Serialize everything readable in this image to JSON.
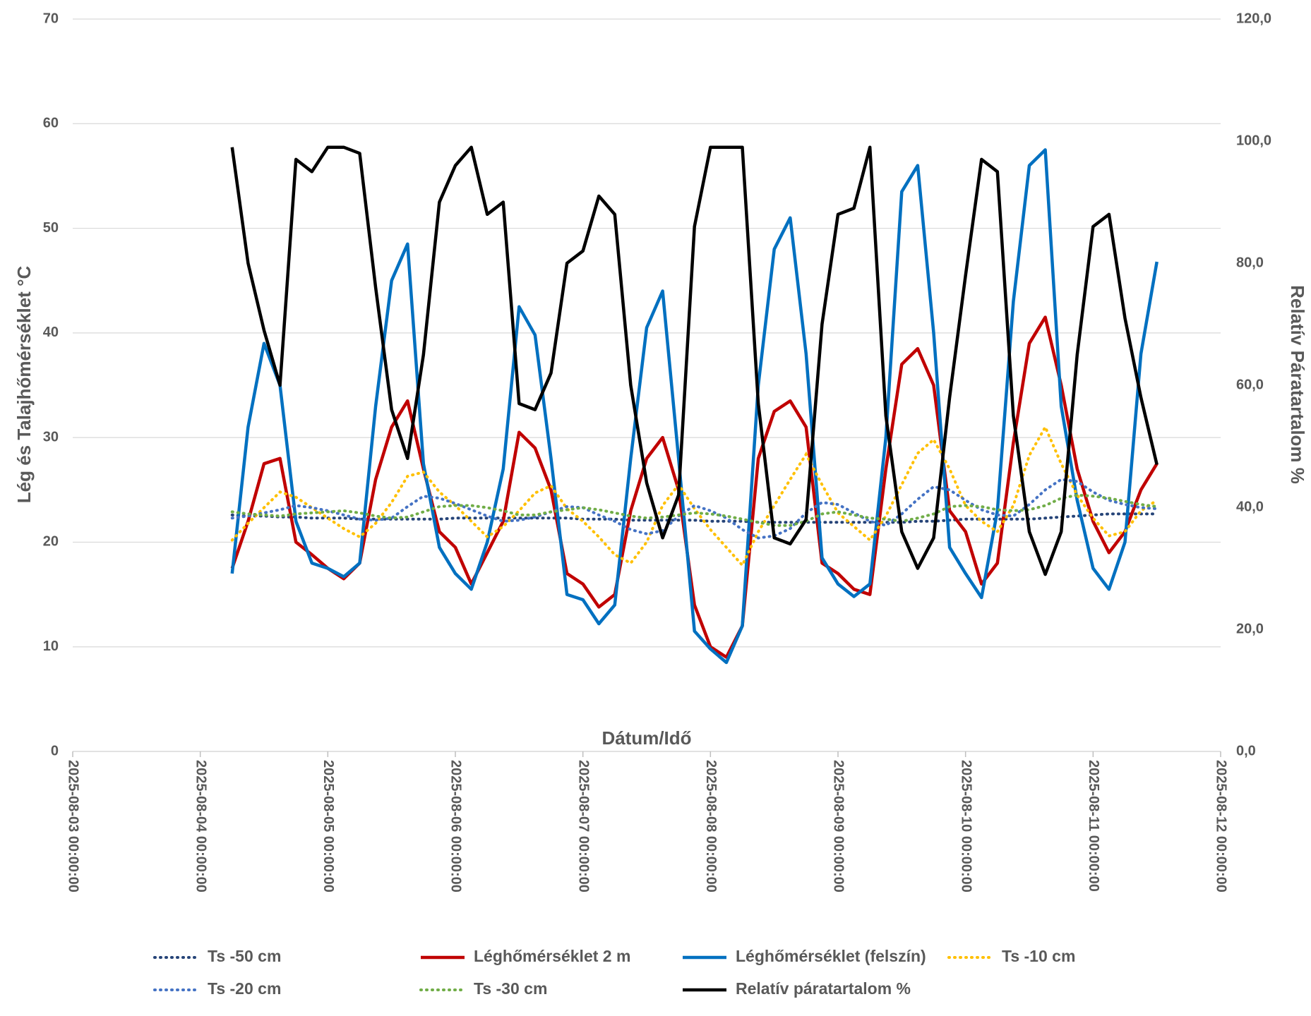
{
  "chart_data": {
    "type": "line",
    "x_label": "Dátum/Idő",
    "y_label": "Lég és Talajhőmérséklet °C",
    "y2_label": "Relatív Páratartalom %",
    "grid": true,
    "legend": "bottom",
    "xlim": [
      "2025-08-03 00:00:00",
      "2025-08-12 00:00:00"
    ],
    "xticks": [
      "2025-08-03 00:00:00",
      "2025-08-04 00:00:00",
      "2025-08-05 00:00:00",
      "2025-08-06 00:00:00",
      "2025-08-07 00:00:00",
      "2025-08-08 00:00:00",
      "2025-08-09 00:00:00",
      "2025-08-10 00:00:00",
      "2025-08-11 00:00:00",
      "2025-08-12 00:00:00"
    ],
    "ylim": [
      0,
      70
    ],
    "yticks": [
      0,
      10,
      20,
      30,
      40,
      50,
      60,
      70
    ],
    "y2lim": [
      0,
      120
    ],
    "y2ticks": [
      {
        "value": 0,
        "label": "0,0"
      },
      {
        "value": 20,
        "label": "20,0"
      },
      {
        "value": 40,
        "label": "40,0"
      },
      {
        "value": 60,
        "label": "60,0"
      },
      {
        "value": 80,
        "label": "80,0"
      },
      {
        "value": 100,
        "label": "100,0"
      },
      {
        "value": 120,
        "label": "120,0"
      }
    ],
    "x": [
      "2025-08-04 06:00:00",
      "2025-08-04 09:00:00",
      "2025-08-04 12:00:00",
      "2025-08-04 15:00:00",
      "2025-08-04 18:00:00",
      "2025-08-04 21:00:00",
      "2025-08-05 00:00:00",
      "2025-08-05 03:00:00",
      "2025-08-05 06:00:00",
      "2025-08-05 09:00:00",
      "2025-08-05 12:00:00",
      "2025-08-05 15:00:00",
      "2025-08-05 18:00:00",
      "2025-08-05 21:00:00",
      "2025-08-06 00:00:00",
      "2025-08-06 03:00:00",
      "2025-08-06 06:00:00",
      "2025-08-06 09:00:00",
      "2025-08-06 12:00:00",
      "2025-08-06 15:00:00",
      "2025-08-06 18:00:00",
      "2025-08-06 21:00:00",
      "2025-08-07 00:00:00",
      "2025-08-07 03:00:00",
      "2025-08-07 06:00:00",
      "2025-08-07 09:00:00",
      "2025-08-07 12:00:00",
      "2025-08-07 15:00:00",
      "2025-08-07 18:00:00",
      "2025-08-07 21:00:00",
      "2025-08-08 00:00:00",
      "2025-08-08 03:00:00",
      "2025-08-08 06:00:00",
      "2025-08-08 09:00:00",
      "2025-08-08 12:00:00",
      "2025-08-08 15:00:00",
      "2025-08-08 18:00:00",
      "2025-08-08 21:00:00",
      "2025-08-09 00:00:00",
      "2025-08-09 03:00:00",
      "2025-08-09 06:00:00",
      "2025-08-09 09:00:00",
      "2025-08-09 12:00:00",
      "2025-08-09 15:00:00",
      "2025-08-09 18:00:00",
      "2025-08-09 21:00:00",
      "2025-08-10 00:00:00",
      "2025-08-10 03:00:00",
      "2025-08-10 06:00:00",
      "2025-08-10 09:00:00",
      "2025-08-10 12:00:00",
      "2025-08-10 15:00:00",
      "2025-08-10 18:00:00",
      "2025-08-10 21:00:00",
      "2025-08-11 00:00:00",
      "2025-08-11 03:00:00",
      "2025-08-11 06:00:00",
      "2025-08-11 09:00:00",
      "2025-08-11 12:00:00"
    ],
    "series": [
      {
        "name": "Ts -50 cm",
        "color": "#264478",
        "line_style": "dotted",
        "values": [
          22.6,
          22.5,
          22.5,
          22.4,
          22.4,
          22.3,
          22.3,
          22.3,
          22.2,
          22.2,
          22.2,
          22.2,
          22.2,
          22.2,
          22.3,
          22.3,
          22.3,
          22.3,
          22.3,
          22.3,
          22.3,
          22.3,
          22.2,
          22.2,
          22.2,
          22.1,
          22.1,
          22.1,
          22.1,
          22.1,
          22,
          22,
          22,
          21.9,
          21.9,
          21.9,
          21.9,
          21.9,
          21.9,
          21.9,
          21.9,
          21.9,
          21.9,
          22,
          22,
          22.1,
          22.2,
          22.2,
          22.2,
          22.2,
          22.2,
          22.3,
          22.4,
          22.5,
          22.6,
          22.7,
          22.7,
          22.7,
          22.7
        ]
      },
      {
        "name": "Léghőmérséklet 2 m",
        "color": "#c00000",
        "line_style": "solid",
        "values": [
          17.5,
          22,
          27.5,
          28,
          20,
          18.8,
          17.5,
          16.5,
          18,
          26,
          31,
          33.5,
          27,
          21,
          19.5,
          16,
          19,
          22,
          30.5,
          29,
          25,
          17,
          16,
          13.8,
          15,
          23,
          28,
          30,
          25,
          14,
          10,
          9,
          12,
          28,
          32.5,
          33.5,
          31,
          18,
          17,
          15.5,
          15,
          27,
          37,
          38.5,
          35,
          23,
          21,
          16,
          18,
          29.5,
          39,
          41.5,
          35,
          27,
          22,
          19,
          21,
          25,
          27.5
        ]
      },
      {
        "name": "Léghőmérséklet (felszín)",
        "color": "#0070c0",
        "line_style": "solid",
        "values": [
          17,
          31,
          39,
          35,
          22,
          18,
          17.5,
          16.7,
          18,
          33,
          45,
          48.5,
          27.5,
          19.5,
          17,
          15.5,
          20,
          27,
          42.5,
          39.8,
          28,
          15,
          14.5,
          12.2,
          14,
          28,
          40.5,
          44,
          28,
          11.5,
          9.8,
          8.5,
          12,
          35,
          48,
          51,
          38,
          18.5,
          16,
          14.8,
          16,
          30,
          53.5,
          56,
          40,
          19.5,
          17,
          14.7,
          23,
          43,
          56,
          57.5,
          33,
          24,
          17.5,
          15.5,
          20,
          38,
          46.8
        ]
      },
      {
        "name": "Ts -10 cm",
        "color": "#ffc000",
        "line_style": "dotted",
        "values": [
          20.2,
          21.8,
          23.3,
          24.8,
          24.3,
          23.3,
          22.3,
          21.3,
          20.5,
          21.8,
          23.8,
          26.3,
          26.7,
          24.8,
          23.5,
          22,
          20.5,
          21.5,
          23,
          24.7,
          25.4,
          23.2,
          22,
          20.5,
          18.8,
          18,
          20,
          23.5,
          25.5,
          23.2,
          21.2,
          19.5,
          17.8,
          21,
          23.5,
          26,
          28.4,
          25.5,
          22.8,
          21.5,
          20.2,
          22.5,
          25.5,
          28.5,
          29.8,
          27,
          23.5,
          22,
          21,
          23.5,
          28.3,
          31,
          27.5,
          24.5,
          22.3,
          20.6,
          21,
          23,
          24
        ]
      },
      {
        "name": "Ts -20 cm",
        "color": "#4472c4",
        "line_style": "dotted",
        "values": [
          22.3,
          22.5,
          22.8,
          23.1,
          23.5,
          23.3,
          23,
          22.6,
          22.2,
          22.1,
          22.3,
          23.4,
          24.4,
          24.2,
          23.7,
          23.1,
          22.5,
          22,
          22.1,
          22.4,
          22.9,
          23.4,
          23.3,
          22.6,
          22,
          21.2,
          20.8,
          21.1,
          22.5,
          23.5,
          23,
          22.3,
          21.2,
          20.4,
          20.6,
          21.3,
          22.8,
          23.8,
          23.6,
          22.8,
          22,
          21.6,
          22.7,
          24.1,
          25.3,
          25,
          24,
          23.1,
          22.6,
          22.5,
          23.6,
          25,
          26,
          25.8,
          24.8,
          24,
          23.6,
          23.3,
          23.2
        ]
      },
      {
        "name": "Ts -30 cm",
        "color": "#70ad47",
        "line_style": "dotted",
        "values": [
          22.9,
          22.7,
          22.6,
          22.5,
          22.7,
          22.8,
          22.9,
          23,
          22.8,
          22.5,
          22.3,
          22.4,
          22.9,
          23.4,
          23.5,
          23.5,
          23.3,
          23,
          22.6,
          22.6,
          22.9,
          23.1,
          23.3,
          23.1,
          22.8,
          22.5,
          22.3,
          22.4,
          22.6,
          22.8,
          22.7,
          22.5,
          22.2,
          21.9,
          21.6,
          21.6,
          22,
          22.7,
          22.9,
          22.6,
          22.3,
          22.2,
          22,
          22.3,
          22.7,
          23.4,
          23.5,
          23.4,
          23.1,
          23,
          23.1,
          23.5,
          24.2,
          24.5,
          24.4,
          24.2,
          23.9,
          23.6,
          23.4
        ]
      },
      {
        "name": "Relatív páratartalom %",
        "color": "#000000",
        "line_style": "solid",
        "axis": "y2",
        "values": [
          99,
          80,
          69,
          60,
          97,
          95,
          99,
          99,
          98,
          76,
          56,
          48,
          65,
          90,
          96,
          99,
          88,
          90,
          57,
          56,
          62,
          80,
          82,
          91,
          88,
          60,
          44,
          35,
          42,
          86,
          99,
          99,
          99,
          57,
          35,
          34,
          38,
          70,
          88,
          89,
          99,
          55,
          36,
          30,
          35,
          58,
          78,
          97,
          95,
          55,
          36,
          29,
          36,
          65,
          86,
          88,
          71,
          58,
          47
        ]
      }
    ]
  }
}
